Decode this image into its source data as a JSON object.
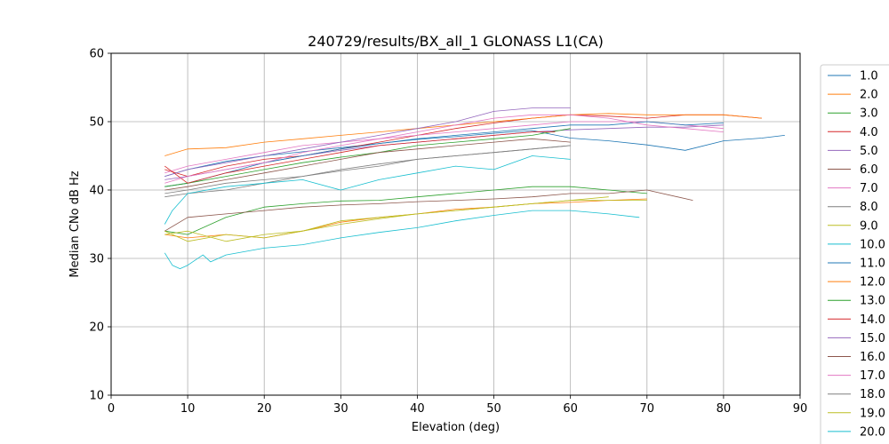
{
  "chart_data": {
    "type": "line",
    "title": "240729/results/BX_all_1 GLONASS L1(CA)",
    "xlabel": "Elevation (deg)",
    "ylabel": "Median CNo dB Hz",
    "xlim": [
      0,
      90
    ],
    "ylim": [
      10,
      60
    ],
    "xticks": [
      "0",
      "10",
      "20",
      "30",
      "40",
      "50",
      "60",
      "70",
      "80",
      "90"
    ],
    "yticks": [
      "10",
      "20",
      "30",
      "40",
      "50",
      "60"
    ],
    "grid": true,
    "legend_position": "right",
    "colors": [
      "#1f77b4",
      "#ff7f0e",
      "#2ca02c",
      "#d62728",
      "#9467bd",
      "#8c564b",
      "#e377c2",
      "#7f7f7f",
      "#bcbd22",
      "#17becf"
    ],
    "series": [
      {
        "name": "1.0",
        "x": [
          7,
          10,
          15,
          20,
          25,
          30,
          35,
          40,
          45,
          50,
          55,
          60,
          65,
          70,
          75,
          80,
          85,
          88
        ],
        "y": [
          42.0,
          43.0,
          44.2,
          45.0,
          45.6,
          46.2,
          46.8,
          47.4,
          47.8,
          48.3,
          48.7,
          47.6,
          47.2,
          46.6,
          45.8,
          47.2,
          47.6,
          48.0
        ]
      },
      {
        "name": "2.0",
        "x": [
          7,
          10,
          15,
          20,
          25,
          30,
          35,
          40,
          45,
          50,
          55,
          60,
          65,
          70
        ],
        "y": [
          33.5,
          33.0,
          33.5,
          33.0,
          34.0,
          35.3,
          36.0,
          36.5,
          37.2,
          37.5,
          38.0,
          38.2,
          38.5,
          38.7
        ]
      },
      {
        "name": "3.0",
        "x": [
          7,
          10,
          15,
          20,
          25,
          30,
          35,
          40,
          45,
          50,
          55,
          60,
          65,
          70
        ],
        "y": [
          34.0,
          33.5,
          36.0,
          37.5,
          38.0,
          38.4,
          38.5,
          39.0,
          39.5,
          40.0,
          40.5,
          40.5,
          40.0,
          39.5
        ]
      },
      {
        "name": "4.0",
        "x": [
          7,
          10,
          15,
          20,
          25,
          30,
          35,
          40,
          45,
          50,
          55,
          60,
          65,
          70,
          75,
          80,
          85
        ],
        "y": [
          43.0,
          42.0,
          43.5,
          44.5,
          45.0,
          46.0,
          47.0,
          48.0,
          49.0,
          49.8,
          50.5,
          51.0,
          50.8,
          50.5,
          51.0,
          51.0,
          50.5
        ]
      },
      {
        "name": "5.0",
        "x": [
          7,
          10,
          15,
          20,
          25,
          30,
          35,
          40,
          45,
          50,
          55,
          60,
          65,
          70,
          75,
          80
        ],
        "y": [
          41.5,
          42.0,
          43.0,
          44.0,
          45.0,
          45.8,
          46.5,
          47.0,
          47.5,
          48.0,
          48.5,
          48.8,
          49.0,
          49.2,
          49.2,
          49.5
        ]
      },
      {
        "name": "6.0",
        "x": [
          7,
          10,
          15,
          20,
          25,
          30,
          35,
          40,
          45,
          50,
          55,
          60,
          65,
          70,
          76
        ],
        "y": [
          34.0,
          36.0,
          36.5,
          37.0,
          37.5,
          37.8,
          38.0,
          38.3,
          38.5,
          38.7,
          39.0,
          39.5,
          39.5,
          40.0,
          38.5
        ]
      },
      {
        "name": "7.0",
        "x": [
          7,
          10,
          15,
          20,
          25,
          30,
          35,
          40,
          45,
          50,
          55,
          60,
          65,
          70,
          75,
          80
        ],
        "y": [
          42.5,
          43.5,
          44.5,
          45.5,
          46.5,
          47.0,
          47.5,
          48.0,
          48.5,
          49.0,
          49.5,
          50.0,
          50.0,
          50.0,
          49.5,
          49.0
        ]
      },
      {
        "name": "8.0",
        "x": [
          7,
          10,
          15,
          20,
          25,
          30,
          35,
          40,
          45,
          50,
          55,
          60
        ],
        "y": [
          39.0,
          39.5,
          40.0,
          41.0,
          42.0,
          43.0,
          43.8,
          44.5,
          45.0,
          45.5,
          46.0,
          46.5
        ]
      },
      {
        "name": "9.0",
        "x": [
          7,
          10,
          15,
          20,
          25,
          30,
          35,
          40,
          45,
          50,
          55,
          60,
          65
        ],
        "y": [
          34.0,
          32.5,
          33.5,
          33.0,
          34.0,
          35.5,
          36.0,
          36.5,
          37.0,
          37.5,
          38.0,
          38.5,
          39.0
        ]
      },
      {
        "name": "10.0",
        "x": [
          7,
          8,
          9,
          10,
          12,
          13,
          15,
          20,
          25,
          30,
          35,
          40,
          45,
          50,
          55,
          60,
          65,
          69
        ],
        "y": [
          30.8,
          29.0,
          28.5,
          29.0,
          30.5,
          29.5,
          30.5,
          31.5,
          32.0,
          33.0,
          33.8,
          34.5,
          35.5,
          36.3,
          37.0,
          37.0,
          36.5,
          36.0
        ]
      },
      {
        "name": "11.0",
        "x": [
          7,
          10,
          15,
          20,
          25,
          30,
          35,
          40,
          45,
          50,
          55,
          60,
          65,
          70,
          75,
          80
        ],
        "y": [
          40.5,
          41.0,
          42.5,
          44.0,
          45.0,
          46.0,
          46.8,
          47.5,
          48.0,
          48.5,
          49.0,
          49.5,
          49.5,
          50.0,
          49.5,
          49.8
        ]
      },
      {
        "name": "12.0",
        "x": [
          7,
          10,
          15,
          20,
          25,
          30,
          35,
          40,
          45,
          50,
          55,
          60,
          65,
          70,
          75,
          80,
          85
        ],
        "y": [
          45.0,
          46.0,
          46.2,
          47.0,
          47.5,
          48.0,
          48.5,
          49.0,
          49.5,
          50.0,
          50.5,
          51.0,
          51.2,
          51.0,
          51.0,
          51.0,
          50.5
        ]
      },
      {
        "name": "13.0",
        "x": [
          7,
          10,
          15,
          20,
          25,
          30,
          35,
          40,
          45,
          50,
          55,
          60
        ],
        "y": [
          40.5,
          41.0,
          42.0,
          43.0,
          44.0,
          44.8,
          45.5,
          46.5,
          47.0,
          47.5,
          48.0,
          49.0
        ]
      },
      {
        "name": "14.0",
        "x": [
          7,
          10,
          15,
          20,
          25,
          30,
          35,
          40,
          45,
          50,
          55,
          58
        ],
        "y": [
          43.5,
          41.0,
          42.5,
          43.5,
          44.5,
          45.5,
          46.5,
          47.0,
          47.5,
          48.0,
          48.5,
          48.5
        ]
      },
      {
        "name": "15.0",
        "x": [
          7,
          10,
          15,
          20,
          25,
          30,
          35,
          40,
          45,
          50,
          55,
          60
        ],
        "y": [
          42.0,
          43.0,
          44.0,
          45.0,
          46.0,
          47.0,
          48.0,
          49.0,
          50.0,
          51.5,
          52.0,
          52.0
        ]
      },
      {
        "name": "16.0",
        "x": [
          7,
          10,
          15,
          20,
          25,
          30,
          35,
          40,
          45,
          50,
          55,
          60
        ],
        "y": [
          40.0,
          40.5,
          41.5,
          42.5,
          43.5,
          44.5,
          45.5,
          46.0,
          46.5,
          47.0,
          47.5,
          47.0
        ]
      },
      {
        "name": "17.0",
        "x": [
          7,
          10,
          15,
          20,
          25,
          30,
          35,
          40,
          45,
          50,
          55,
          60,
          65,
          70,
          75,
          80
        ],
        "y": [
          41.0,
          42.0,
          43.0,
          44.0,
          45.5,
          46.5,
          47.5,
          48.5,
          49.5,
          50.5,
          51.0,
          51.0,
          50.5,
          49.5,
          49.0,
          48.5
        ]
      },
      {
        "name": "18.0",
        "x": [
          7,
          10,
          15,
          20,
          25,
          30,
          35,
          40,
          45,
          50,
          55,
          60
        ],
        "y": [
          39.5,
          40.0,
          41.0,
          41.5,
          42.0,
          42.8,
          43.5,
          44.5,
          45.0,
          45.5,
          46.0,
          46.5
        ]
      },
      {
        "name": "19.0",
        "x": [
          7,
          10,
          15,
          20,
          25,
          30,
          35,
          40,
          45,
          50,
          55,
          60,
          65,
          70
        ],
        "y": [
          33.5,
          34.0,
          32.5,
          33.5,
          34.0,
          35.0,
          35.8,
          36.5,
          37.0,
          37.5,
          38.0,
          38.5,
          38.5,
          38.5
        ]
      },
      {
        "name": "20.0",
        "x": [
          7,
          8,
          10,
          15,
          20,
          25,
          30,
          35,
          40,
          45,
          50,
          55,
          60
        ],
        "y": [
          35.0,
          37.0,
          39.5,
          40.5,
          41.0,
          41.5,
          40.0,
          41.5,
          42.5,
          43.5,
          43.0,
          45.0,
          44.5
        ]
      }
    ]
  }
}
